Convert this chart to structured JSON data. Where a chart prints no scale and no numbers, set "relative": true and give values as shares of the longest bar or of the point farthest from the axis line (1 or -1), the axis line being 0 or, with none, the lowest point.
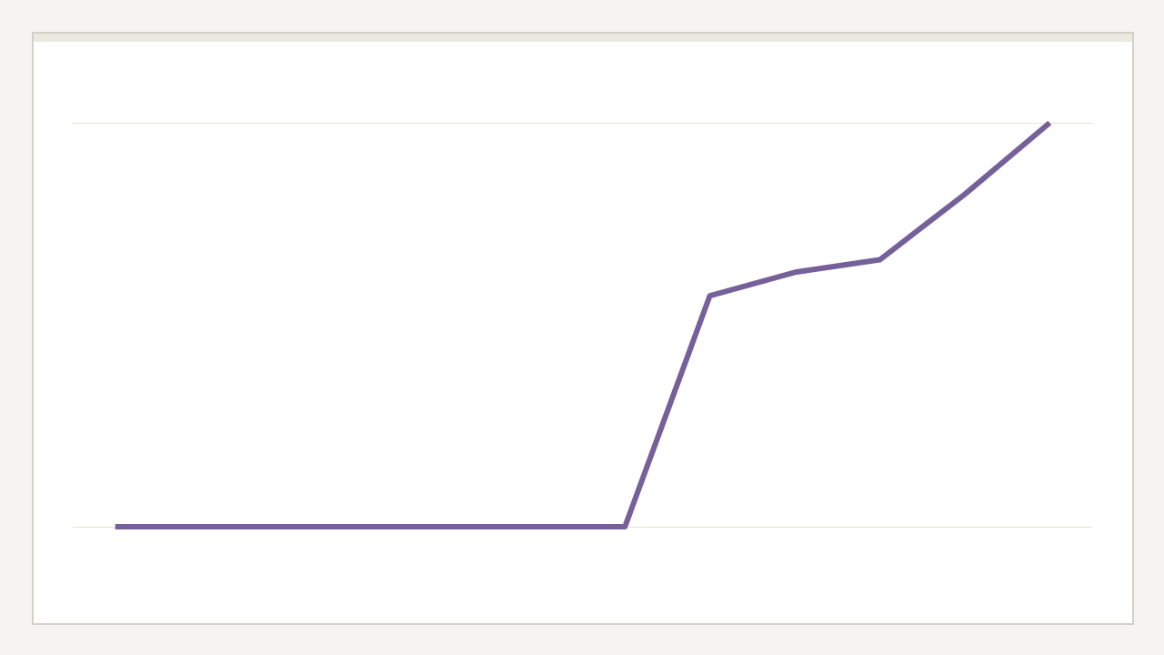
{
  "chart_data": {
    "type": "line",
    "relative": true,
    "categories": [
      null,
      null,
      null,
      null,
      null,
      null,
      null,
      null,
      null,
      null,
      null,
      null
    ],
    "series": [
      {
        "color": "#76609a",
        "values": [
          0,
          0,
          0,
          0,
          0,
          0,
          0,
          0.572,
          0.63,
          0.661,
          0.823,
          1
        ]
      }
    ],
    "grid": "y",
    "marker": "none"
  }
}
